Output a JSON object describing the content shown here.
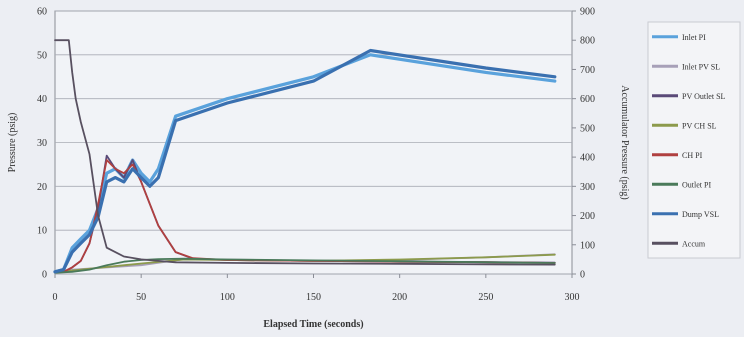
{
  "chart_data": {
    "type": "line",
    "xlabel": "Elapsed Time (seconds)",
    "ylabel_left": "Pressure (psig)",
    "ylabel_right": "Accumulator Pressure (psig)",
    "x_ticks": [
      "0",
      "50",
      "100",
      "150",
      "200",
      "250",
      "300"
    ],
    "y_left_ticks": [
      "0",
      "10",
      "20",
      "30",
      "40",
      "50",
      "60"
    ],
    "y_right_ticks": [
      "0",
      "100",
      "200",
      "300",
      "400",
      "500",
      "600",
      "700",
      "800",
      "900"
    ],
    "xlim": [
      0,
      300
    ],
    "ylim_left": [
      0,
      60
    ],
    "ylim_right": [
      0,
      900
    ],
    "grid": "horizontal",
    "legend_position": "right",
    "series": [
      {
        "name": "Inlet PI",
        "axis": "left",
        "color": "#5aa2dc",
        "x": [
          0,
          5,
          10,
          15,
          20,
          25,
          30,
          35,
          40,
          45,
          50,
          55,
          60,
          70,
          100,
          150,
          183,
          250,
          290
        ],
        "y": [
          0.5,
          1,
          6,
          8,
          10,
          15,
          23,
          24,
          22,
          26,
          23,
          21,
          24,
          36,
          40,
          45,
          50,
          46,
          44
        ]
      },
      {
        "name": "Inlet PV SL",
        "axis": "left",
        "color": "#a7a0b8",
        "x": [
          0,
          10,
          50,
          75,
          100,
          150,
          200,
          250,
          290
        ],
        "y": [
          0.5,
          1,
          2,
          3.4,
          3.3,
          3.0,
          3.2,
          3.8,
          4.5
        ]
      },
      {
        "name": "PV Outlet SL",
        "axis": "left",
        "color": "#5a4a78",
        "x": [
          0,
          5,
          10,
          15,
          20,
          25,
          30,
          35,
          40,
          45,
          50,
          55,
          60,
          70,
          80,
          100,
          150,
          200,
          250,
          290
        ],
        "y": [
          0.5,
          0.5,
          1.5,
          3,
          7,
          15,
          27,
          24,
          22,
          26,
          21,
          16,
          11,
          5,
          3.5,
          3.2,
          3.0,
          2.8,
          2.7,
          2.6
        ]
      },
      {
        "name": "PV CH SL",
        "axis": "left",
        "color": "#8c9a4c",
        "x": [
          0,
          10,
          50,
          75,
          100,
          150,
          200,
          250,
          290
        ],
        "y": [
          0.5,
          0.8,
          2.4,
          3.3,
          3.2,
          3.0,
          3.3,
          3.8,
          4.4
        ]
      },
      {
        "name": "CH PI",
        "axis": "left",
        "color": "#b04040",
        "x": [
          0,
          5,
          10,
          15,
          20,
          25,
          30,
          35,
          40,
          45,
          50,
          55,
          60,
          70,
          80,
          100,
          150,
          200,
          250,
          290
        ],
        "y": [
          0.5,
          0.5,
          1.5,
          3,
          7,
          16,
          26,
          24,
          23,
          25,
          21,
          16,
          11,
          5,
          3.6,
          3.2,
          3.0,
          2.8,
          2.7,
          2.5
        ]
      },
      {
        "name": "Outlet PI",
        "axis": "left",
        "color": "#4a7a5a",
        "x": [
          0,
          10,
          20,
          30,
          40,
          50,
          60,
          75,
          100,
          150,
          200,
          250,
          290
        ],
        "y": [
          0.3,
          0.5,
          1,
          2,
          2.8,
          3.2,
          3.4,
          3.5,
          3.3,
          3.1,
          2.9,
          2.7,
          2.5
        ]
      },
      {
        "name": "Dump VSL",
        "axis": "left",
        "color": "#3a70b0",
        "x": [
          0,
          5,
          10,
          15,
          20,
          25,
          30,
          35,
          40,
          45,
          50,
          55,
          60,
          70,
          100,
          150,
          183,
          250,
          290
        ],
        "y": [
          0.5,
          1,
          5,
          7,
          9,
          13,
          21,
          22,
          21,
          24,
          22,
          20,
          22,
          35,
          39,
          44,
          51,
          47,
          45
        ]
      },
      {
        "name": "Accum",
        "axis": "right",
        "color": "#585060",
        "x": [
          0,
          5,
          8,
          10,
          12,
          15,
          20,
          25,
          30,
          40,
          50,
          60,
          70,
          100,
          150,
          200,
          250,
          290
        ],
        "y": [
          800,
          800,
          800,
          690,
          600,
          520,
          410,
          200,
          90,
          60,
          50,
          45,
          40,
          38,
          36,
          35,
          33,
          32
        ]
      }
    ]
  }
}
